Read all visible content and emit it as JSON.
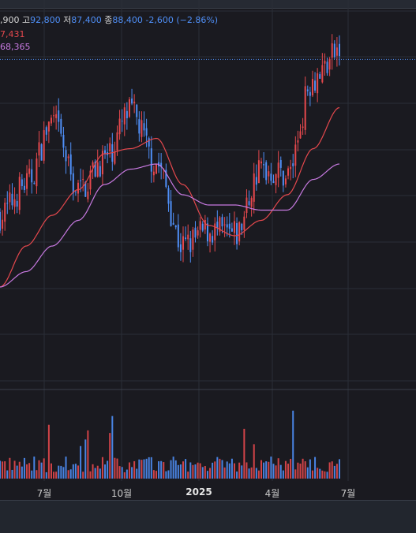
{
  "legend": {
    "open_value": ",900",
    "high_label": "고",
    "high_value": "92,800",
    "low_label": "저",
    "low_value": "87,400",
    "close_label": "종",
    "close_value": "88,400",
    "change": "-2,600 (−2.86%)",
    "ma_short": "7,431",
    "ma_long": "68,365"
  },
  "colors": {
    "background": "#1a1a20",
    "up": "#e5484d",
    "down": "#4f8ff7",
    "ma_short": "#e5484d",
    "ma_long": "#c779e0",
    "current_price_line": "#4f8ff7",
    "grid": "#2a2e37"
  },
  "chart_data": {
    "type": "candlestick",
    "x_ticks": [
      "7월",
      "10월",
      "2025",
      "4월",
      "7월"
    ],
    "current_price": 88400,
    "ylim": [
      24000,
      100000
    ],
    "key_points": [
      {
        "x": "2024-05",
        "price": 58000
      },
      {
        "x": "2024-06",
        "price": 64000
      },
      {
        "x": "2024-07",
        "price": 76000
      },
      {
        "x": "2024-08",
        "price": 63000
      },
      {
        "x": "2024-09",
        "price": 69000
      },
      {
        "x": "2024-10",
        "price": 78000
      },
      {
        "x": "2024-11",
        "price": 68000
      },
      {
        "x": "2024-12",
        "price": 52000
      },
      {
        "x": "2025-01",
        "price": 55000
      },
      {
        "x": "2025-02",
        "price": 54000
      },
      {
        "x": "2025-03",
        "price": 67000
      },
      {
        "x": "2025-04",
        "price": 66000
      },
      {
        "x": "2025-05",
        "price": 85000
      },
      {
        "x": "2025-06",
        "price": 90000
      }
    ],
    "ma_short_points": [
      44000,
      52000,
      58000,
      63000,
      70000,
      71000,
      73000,
      64000,
      56000,
      54000,
      57000,
      62000,
      71000,
      79000
    ],
    "ma_long_points": [
      44000,
      47000,
      52000,
      57000,
      64000,
      67000,
      68000,
      62000,
      60000,
      60000,
      59000,
      59000,
      65000,
      68000
    ]
  }
}
